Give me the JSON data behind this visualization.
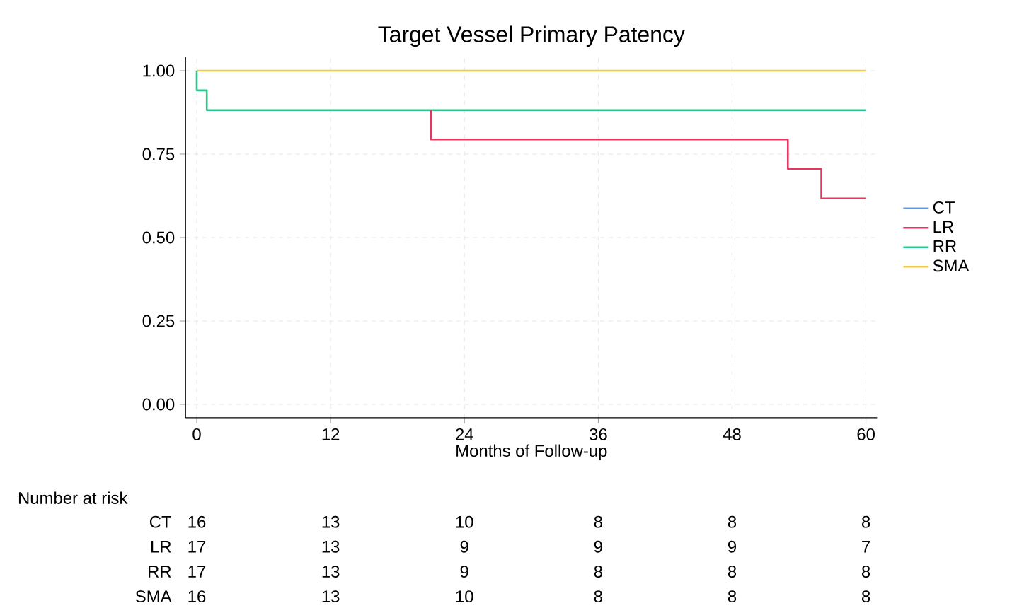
{
  "chart_data": {
    "type": "step",
    "title": "Target Vessel Primary Patency",
    "xlabel": "Months of Follow-up",
    "xlim": [
      -1,
      61
    ],
    "ylim": [
      -0.04,
      1.04
    ],
    "xticks": [
      0,
      12,
      24,
      36,
      48,
      60
    ],
    "yticks": [
      {
        "value": 0,
        "label": "0.00"
      },
      {
        "value": 0.25,
        "label": "0.25"
      },
      {
        "value": 0.5,
        "label": "0.50"
      },
      {
        "value": 0.75,
        "label": "0.75"
      },
      {
        "value": 1,
        "label": "1.00"
      }
    ],
    "grid": true,
    "legend": "right",
    "series": [
      {
        "name": "CT",
        "color": "#5b9bf0"
      },
      {
        "name": "LR",
        "color": "#e8345f",
        "x": [
          21,
          21,
          53,
          56,
          60
        ],
        "values": [
          0.882,
          0.794,
          0.706,
          0.617,
          0.617
        ]
      },
      {
        "name": "RR",
        "color": "#2fc38c",
        "x": [
          0,
          0,
          0.9,
          60
        ],
        "values": [
          1,
          0.941,
          0.882,
          0.882
        ]
      },
      {
        "name": "SMA",
        "color": "#f2c94c",
        "x": [
          0,
          60
        ],
        "values": [
          1,
          1
        ]
      }
    ],
    "annotations": [
      "Number at risk",
      "CT",
      "16",
      "13",
      "10",
      "8",
      "8",
      "8",
      "LR",
      "17",
      "13",
      "9",
      "9",
      "9",
      "7",
      "RR",
      "17",
      "13",
      "9",
      "8",
      "8",
      "8",
      "SMA",
      "16",
      "13",
      "10",
      "8",
      "8",
      "8"
    ]
  }
}
